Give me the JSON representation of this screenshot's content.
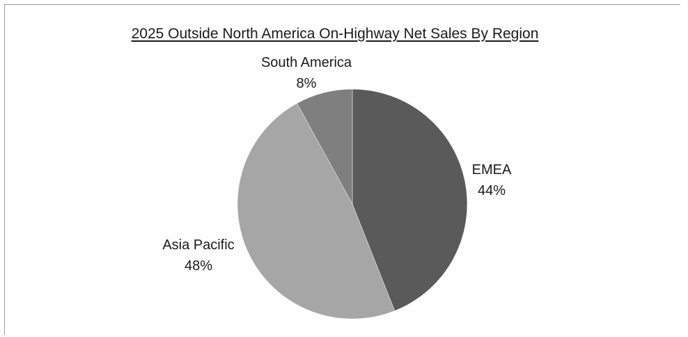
{
  "chart_data": {
    "type": "pie",
    "title": "2025 Outside North America On-Highway Net Sales By Region",
    "slices": [
      {
        "name": "EMEA",
        "value": 44,
        "value_label": "44%",
        "color": "#5a5a5a"
      },
      {
        "name": "Asia Pacific",
        "value": 48,
        "value_label": "48%",
        "color": "#a6a6a6"
      },
      {
        "name": "South America",
        "value": 8,
        "value_label": "8%",
        "color": "#7f7f7f"
      }
    ],
    "legend": false
  }
}
